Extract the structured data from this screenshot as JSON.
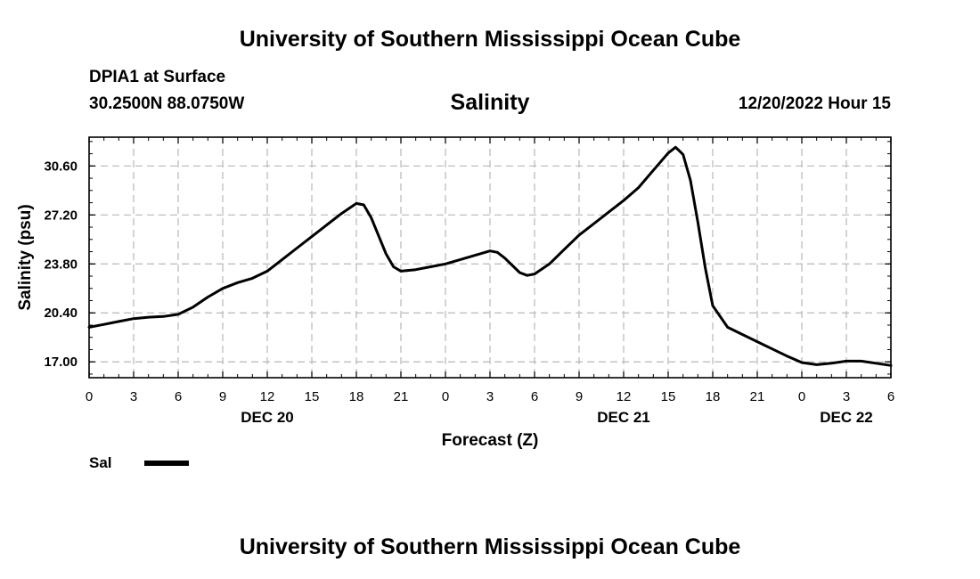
{
  "page": {
    "top_title": "University of Southern Mississippi Ocean Cube",
    "bottom_title": "University of Southern Mississippi Ocean Cube",
    "station": "DPIA1 at Surface",
    "coords": "30.2500N  88.0750W",
    "chart_title": "Salinity",
    "datetime": "12/20/2022 Hour 15"
  },
  "chart_data": {
    "type": "line",
    "title": "Salinity",
    "xlabel": "Forecast (Z)",
    "ylabel": "Salinity (psu)",
    "x_unit": "forecast hour from 00Z Dec 20",
    "xlim": [
      0,
      54
    ],
    "ylim": [
      15.9,
      32.6
    ],
    "yticks": [
      17.0,
      20.4,
      23.8,
      27.2,
      30.6
    ],
    "ytick_labels": [
      "17.00",
      "20.40",
      "23.80",
      "27.20",
      "30.60"
    ],
    "xtick_positions": [
      0,
      3,
      6,
      9,
      12,
      15,
      18,
      21,
      24,
      27,
      30,
      33,
      36,
      39,
      42,
      45,
      48,
      51,
      54
    ],
    "xtick_labels": [
      "0",
      "3",
      "6",
      "9",
      "12",
      "15",
      "18",
      "21",
      "0",
      "3",
      "6",
      "9",
      "12",
      "15",
      "18",
      "21",
      "0",
      "3",
      "6"
    ],
    "date_labels": [
      {
        "x": 12,
        "label": "DEC 20"
      },
      {
        "x": 36,
        "label": "DEC 21"
      },
      {
        "x": 51,
        "label": "DEC 22"
      }
    ],
    "grid": true,
    "legend_position": "bottom-left",
    "series": [
      {
        "name": "Sal",
        "color": "#000000",
        "x": [
          0,
          1,
          2,
          3,
          4,
          5,
          6,
          7,
          8,
          9,
          10,
          11,
          12,
          13,
          14,
          15,
          16,
          17,
          18,
          18.5,
          19,
          20,
          20.5,
          21,
          22,
          23,
          24,
          25,
          26,
          27,
          27.5,
          28,
          29,
          29.5,
          30,
          31,
          32,
          33,
          34,
          35,
          36,
          37,
          38,
          39,
          39.5,
          40,
          40.5,
          41,
          41.5,
          42,
          43,
          44,
          45,
          46,
          47,
          48,
          49,
          50,
          51,
          52,
          53,
          54
        ],
        "values": [
          19.4,
          19.6,
          19.8,
          20.0,
          20.1,
          20.15,
          20.3,
          20.8,
          21.5,
          22.1,
          22.5,
          22.8,
          23.3,
          24.1,
          24.9,
          25.7,
          26.5,
          27.3,
          28.0,
          27.9,
          27.0,
          24.5,
          23.6,
          23.3,
          23.4,
          23.6,
          23.8,
          24.1,
          24.4,
          24.7,
          24.6,
          24.2,
          23.2,
          23.0,
          23.1,
          23.8,
          24.8,
          25.8,
          26.6,
          27.4,
          28.2,
          29.1,
          30.3,
          31.5,
          31.9,
          31.4,
          29.6,
          26.7,
          23.5,
          20.9,
          19.4,
          18.9,
          18.4,
          17.9,
          17.4,
          16.95,
          16.8,
          16.9,
          17.05,
          17.05,
          16.9,
          16.75
        ]
      }
    ]
  }
}
